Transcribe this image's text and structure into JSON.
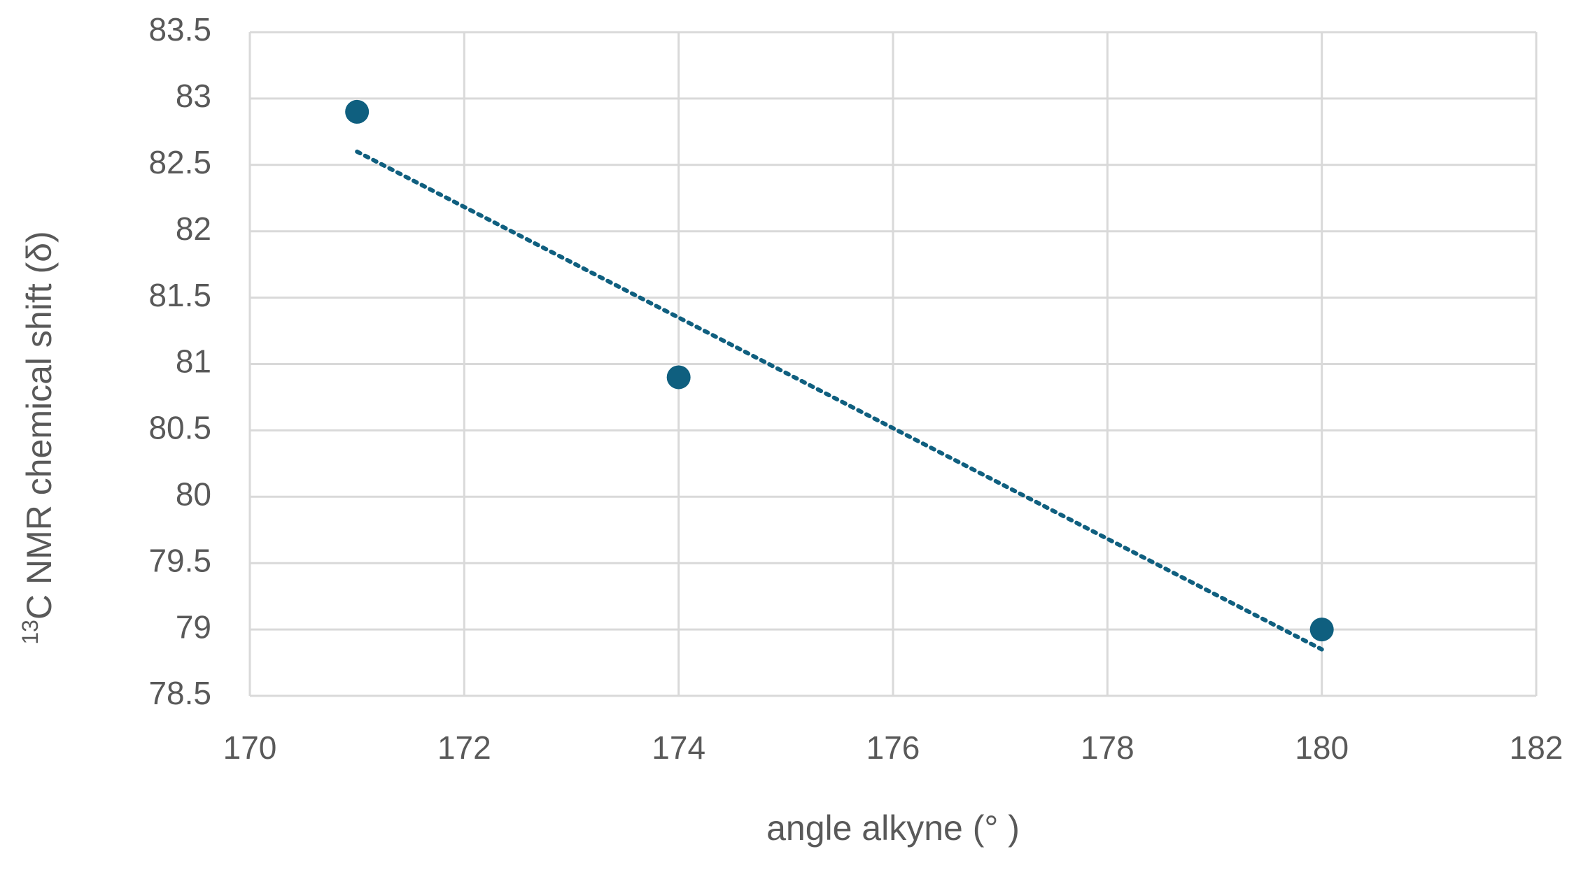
{
  "chart_data": {
    "type": "scatter",
    "x_label": "angle alkyne (° )",
    "y_label": {
      "superscript": "13",
      "text": "C NMR chemical shift (δ)"
    },
    "series": [
      {
        "color": "#0f5f7f",
        "x": [
          171,
          174,
          180
        ],
        "values": [
          82.9,
          80.9,
          79.0
        ]
      }
    ],
    "trendline": "linear",
    "xlim": [
      170,
      182
    ],
    "xticks": [
      170,
      172,
      174,
      176,
      178,
      180,
      182
    ],
    "ylim": [
      78.5,
      83.5
    ],
    "yticks": [
      78.5,
      79,
      79.5,
      80,
      80.5,
      81,
      81.5,
      82,
      82.5,
      83,
      83.5
    ],
    "grid": true
  }
}
